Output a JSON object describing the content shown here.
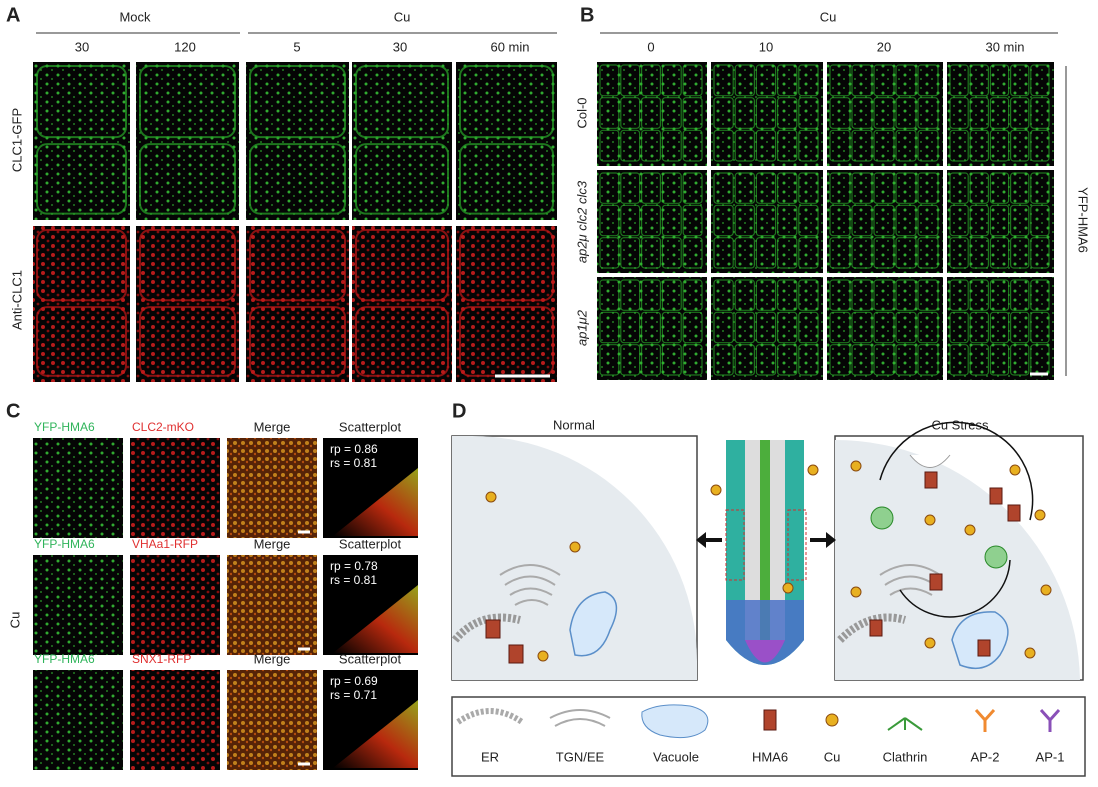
{
  "panel_a": {
    "label": "A",
    "group_labels": [
      "Mock",
      "Cu"
    ],
    "time_labels": [
      "30",
      "120",
      "5",
      "30",
      "60 min"
    ],
    "row_labels": [
      "CLC1-GFP",
      "Anti-CLC1"
    ]
  },
  "panel_b": {
    "label": "B",
    "group_label": "Cu",
    "time_labels": [
      "0",
      "10",
      "20",
      "30 min"
    ],
    "row_labels": [
      "Col-0",
      "ap2μ clc2 clc3",
      "ap1μ2"
    ],
    "side_label": "YFP-HMA6"
  },
  "panel_c": {
    "label": "C",
    "side_label": "Cu",
    "rows": [
      {
        "channel1": "YFP-HMA6",
        "channel2": "CLC2-mKO",
        "merge": "Merge",
        "plot": "Scatterplot",
        "stats": [
          "rp = 0.86",
          "rs = 0.81"
        ]
      },
      {
        "channel1": "YFP-HMA6",
        "channel2": "VHAa1-RFP",
        "merge": "Merge",
        "plot": "Scatterplot",
        "stats": [
          "rp = 0.78",
          "rs = 0.81"
        ]
      },
      {
        "channel1": "YFP-HMA6",
        "channel2": "SNX1-RFP",
        "merge": "Merge",
        "plot": "Scatterplot",
        "stats": [
          "rp = 0.69",
          "rs = 0.71"
        ]
      }
    ]
  },
  "panel_d": {
    "label": "D",
    "normal": "Normal",
    "stress": "Cu Stress",
    "legend": [
      "ER",
      "TGN/EE",
      "Vacuole",
      "HMA6",
      "Cu",
      "Clathrin",
      "AP-2",
      "AP-1"
    ]
  }
}
